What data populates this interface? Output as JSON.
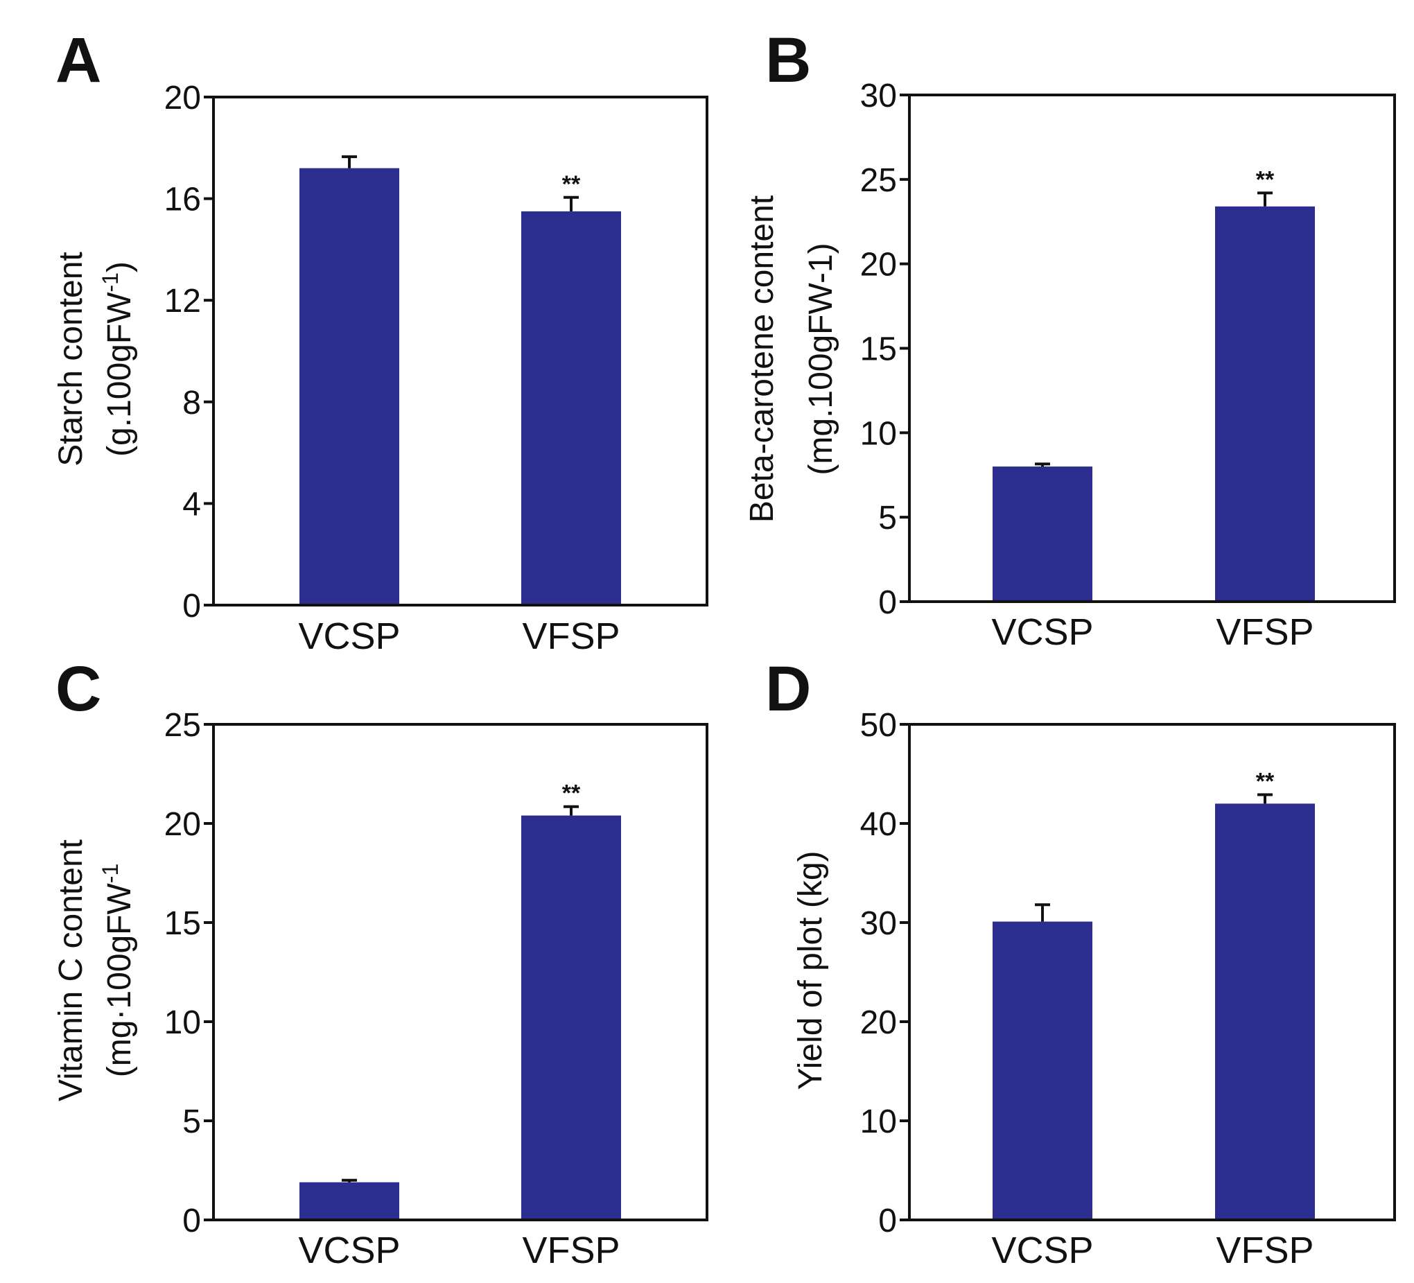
{
  "figure": {
    "bar_color": "#2b2e8f",
    "axis_color": "#111111"
  },
  "chart_data": [
    {
      "type": "bar",
      "panel": "A",
      "categories": [
        "VCSP",
        "VFSP"
      ],
      "values": [
        17.2,
        15.5
      ],
      "errors": [
        0.45,
        0.55
      ],
      "significance": [
        "",
        "**"
      ],
      "ylabel": [
        "Starch content",
        "(g.100gFW",
        "-1",
        ")"
      ],
      "ylim": [
        0,
        20
      ],
      "yticks": [
        "0",
        "4",
        "8",
        "12",
        "16",
        "20"
      ]
    },
    {
      "type": "bar",
      "panel": "B",
      "categories": [
        "VCSP",
        "VFSP"
      ],
      "values": [
        8.0,
        23.4
      ],
      "errors": [
        0.15,
        0.8
      ],
      "significance": [
        "",
        "**"
      ],
      "ylabel": [
        "Beta-carotene content",
        "(mg.100gFW-1)"
      ],
      "ylim": [
        0,
        30
      ],
      "yticks": [
        "0",
        "5",
        "10",
        "15",
        "20",
        "25",
        "30"
      ]
    },
    {
      "type": "bar",
      "panel": "C",
      "categories": [
        "VCSP",
        "VFSP"
      ],
      "values": [
        1.9,
        20.4
      ],
      "errors": [
        0.1,
        0.45
      ],
      "significance": [
        "",
        "**"
      ],
      "ylabel": [
        "Vitamin C content",
        "(mg·100gFW",
        "-1",
        ""
      ],
      "ylim": [
        0,
        25
      ],
      "yticks": [
        "0",
        "5",
        "10",
        "15",
        "20",
        "25"
      ]
    },
    {
      "type": "bar",
      "panel": "D",
      "categories": [
        "VCSP",
        "VFSP"
      ],
      "values": [
        30.1,
        42.0
      ],
      "errors": [
        1.7,
        0.9
      ],
      "significance": [
        "",
        "**"
      ],
      "ylabel": [
        "Yield of plot (kg)"
      ],
      "ylim": [
        0,
        50
      ],
      "yticks": [
        "0",
        "10",
        "20",
        "30",
        "40",
        "50"
      ]
    }
  ]
}
